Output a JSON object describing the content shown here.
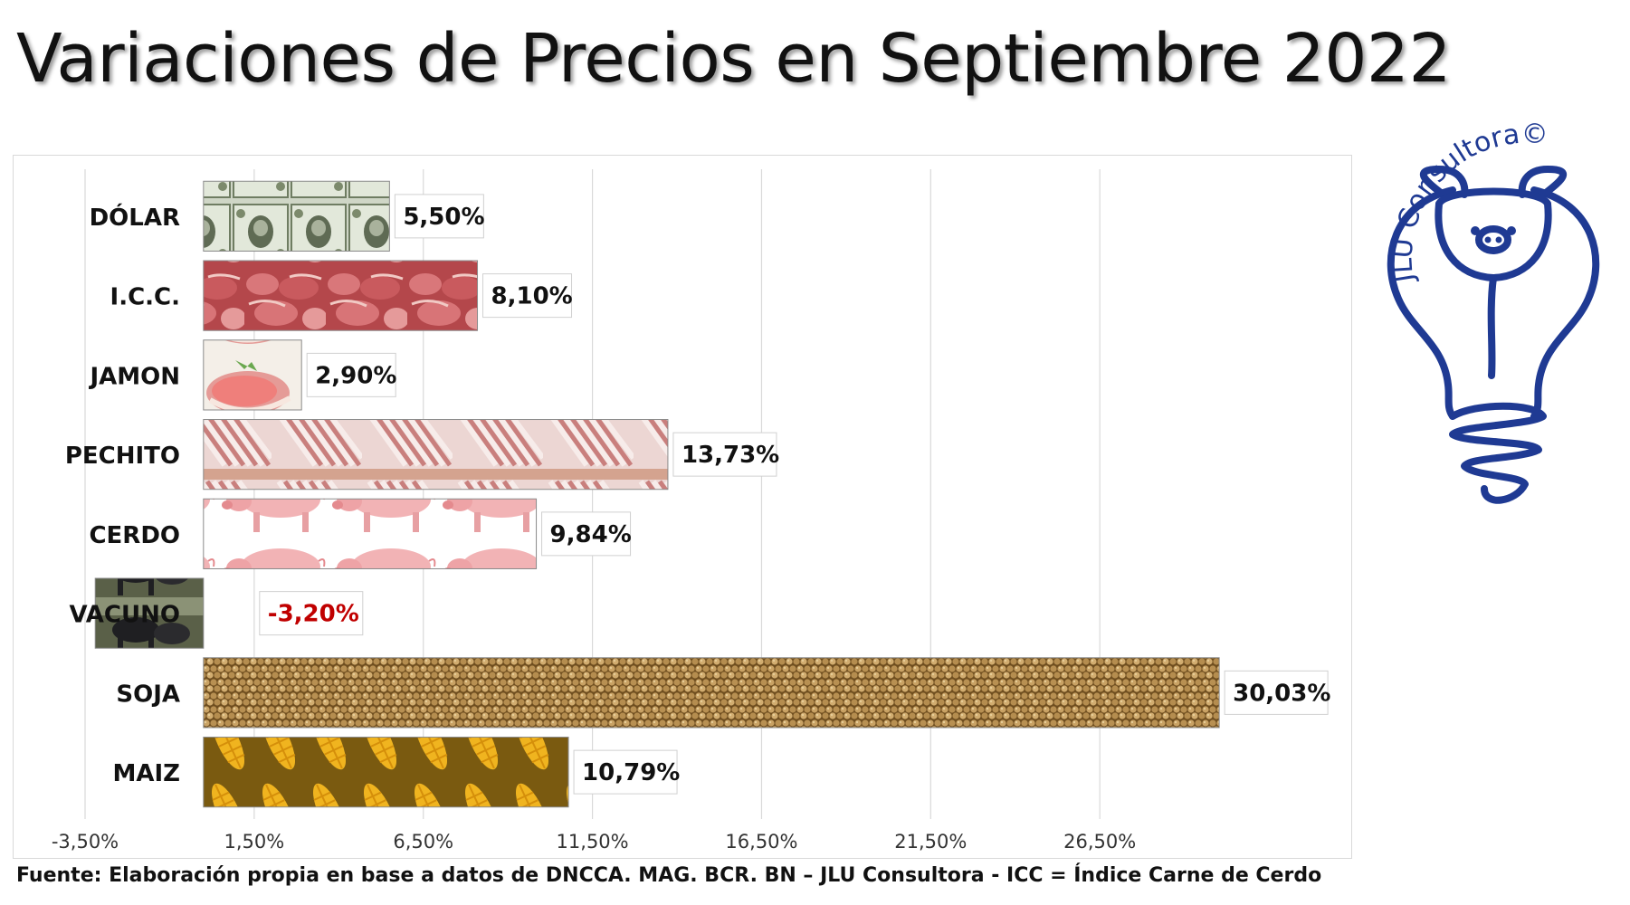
{
  "title": "Variaciones de Precios en Septiembre 2022",
  "source": "Fuente: Elaboración propia en base a datos de DNCCA. MAG. BCR. BN –  JLU Consultora  - ICC = Índice Carne de Cerdo",
  "logo": {
    "text": "JLU Consultora©",
    "icon": "pig-lightbulb-icon",
    "color": "#1f3a93"
  },
  "chart_data": {
    "type": "bar",
    "orientation": "horizontal",
    "categories": [
      "DÓLAR",
      "I.C.C.",
      "JAMON",
      "PECHITO",
      "CERDO",
      "VACUNO",
      "SOJA",
      "MAIZ"
    ],
    "values": [
      5.5,
      8.1,
      2.9,
      13.73,
      9.84,
      -3.2,
      30.03,
      10.79
    ],
    "data_labels": [
      "5,50%",
      "8,10%",
      "2,90%",
      "13,73%",
      "9,84%",
      "-3,20%",
      "30,03%",
      "10,79%"
    ],
    "fills": [
      "dollar-bills",
      "pork-cuts",
      "ham",
      "ribs",
      "pigs",
      "cattle",
      "soybeans",
      "corn"
    ],
    "xlim": [
      -3.5,
      30.0
    ],
    "xticks": [
      -3.5,
      1.5,
      6.5,
      11.5,
      16.5,
      21.5,
      26.5
    ],
    "xtick_labels": [
      "-3,50%",
      "1,50%",
      "6,50%",
      "11,50%",
      "16,50%",
      "21,50%",
      "26,50%"
    ],
    "grid": true,
    "legend": "none",
    "label_colors": {
      "positive": "#111111",
      "negative": "#c00000"
    }
  }
}
